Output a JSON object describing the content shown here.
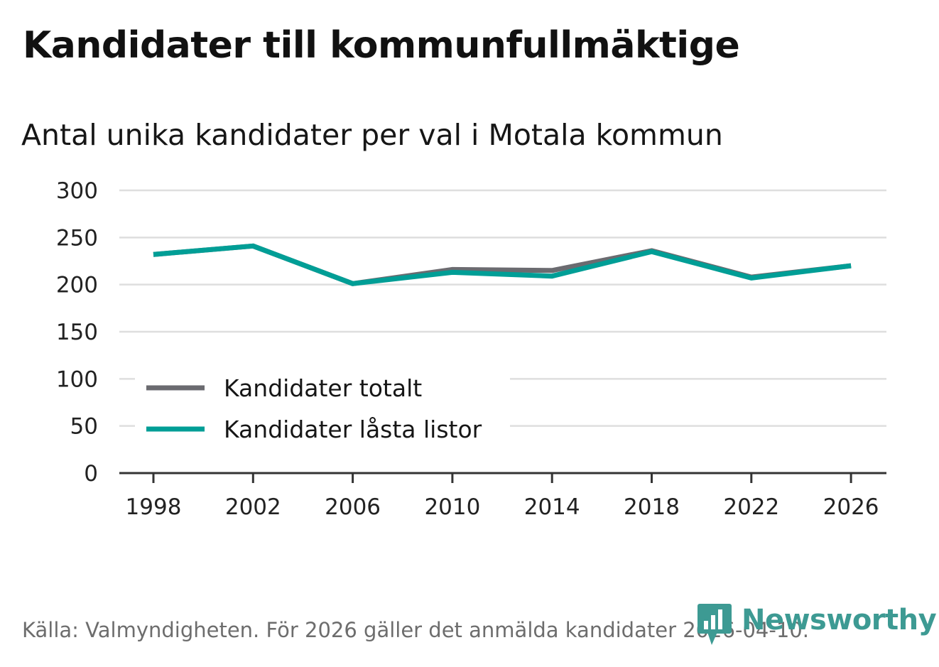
{
  "title": "Kandidater till kommunfullmäktige",
  "subtitle": "Antal unika kandidater per val i Motala kommun",
  "source": "Källa: Valmyndigheten. För 2026 gäller det anmälda kandidater 2026-04-10.",
  "logo": {
    "text": "Newsworthy",
    "icon": "newsworthy-chart-bubble-icon",
    "color": "#3d9a93"
  },
  "chart_data": {
    "type": "line",
    "title": "Antal unika kandidater per val i Motala kommun",
    "xlabel": "",
    "ylabel": "",
    "categories": [
      "1998",
      "2002",
      "2006",
      "2010",
      "2014",
      "2018",
      "2022",
      "2026"
    ],
    "y_ticks": [
      "0",
      "50",
      "100",
      "150",
      "200",
      "250",
      "300"
    ],
    "ylim": [
      0,
      300
    ],
    "grid": true,
    "legend_position": "bottom-left",
    "series": [
      {
        "name": "Kandidater totalt",
        "color": "#6b6b70",
        "values": [
          232,
          241,
          201,
          216,
          215,
          236,
          208,
          220
        ]
      },
      {
        "name": "Kandidater låsta listor",
        "color": "#009e96",
        "values": [
          232,
          241,
          201,
          213,
          209,
          235,
          207,
          220
        ]
      }
    ]
  }
}
